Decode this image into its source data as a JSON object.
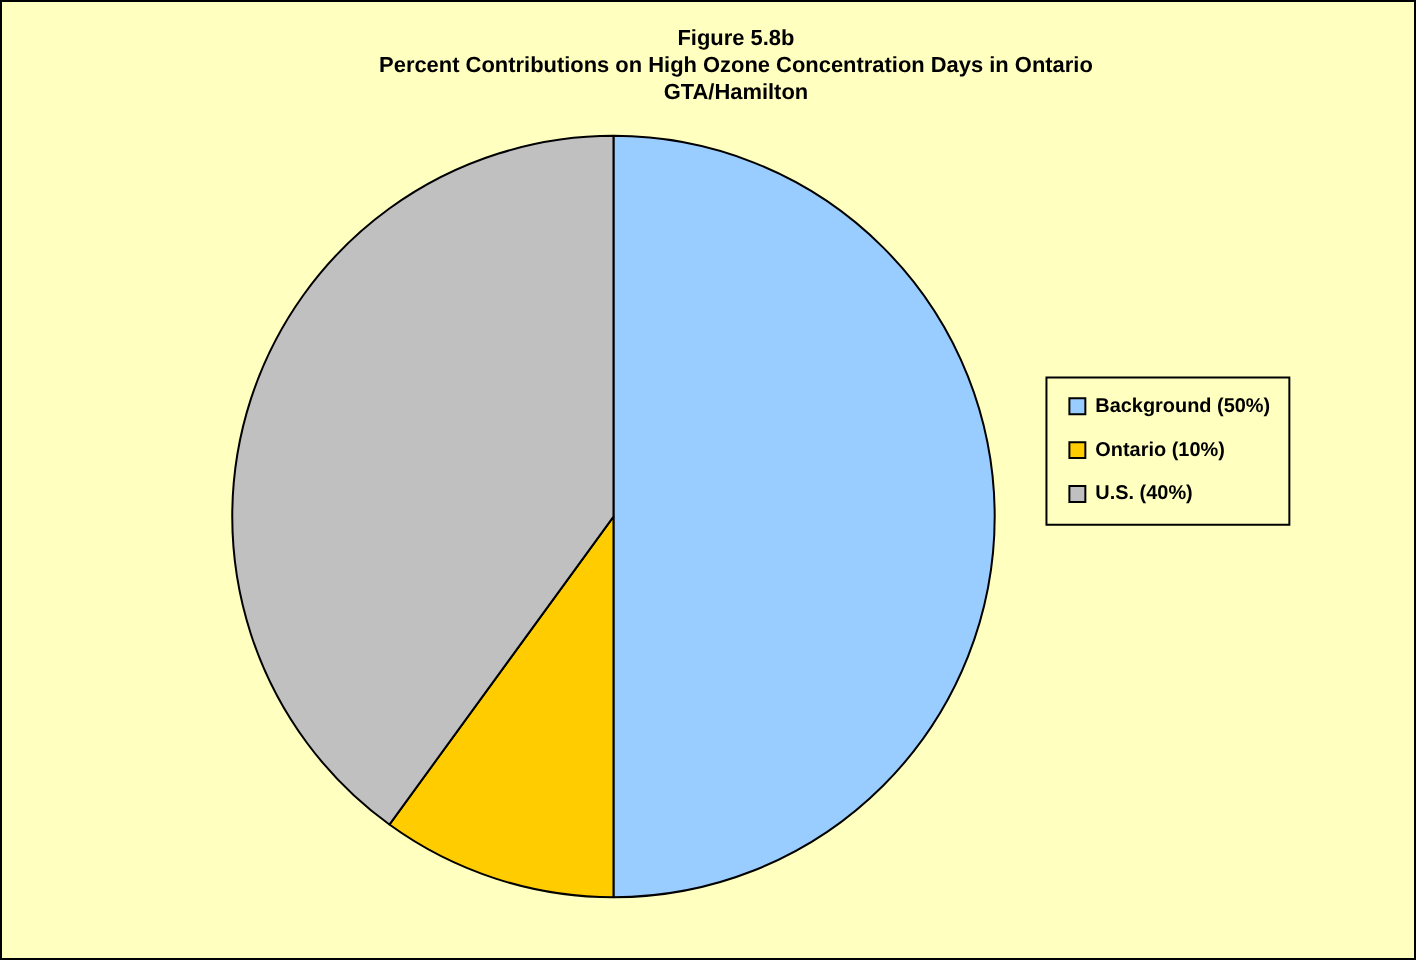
{
  "chart_data": {
    "type": "pie",
    "title": "Figure 5.8b",
    "subtitle": "Percent Contributions on High Ozone Concentration Days in Ontario\nGTA/Hamilton",
    "categories": [
      "Background (50%)",
      "Ontario (10%)",
      "U.S. (40%)"
    ],
    "values": [
      50,
      10,
      40
    ],
    "colors": [
      "#99ccff",
      "#ffcc00",
      "#c0c0c0"
    ],
    "legend": "right"
  }
}
